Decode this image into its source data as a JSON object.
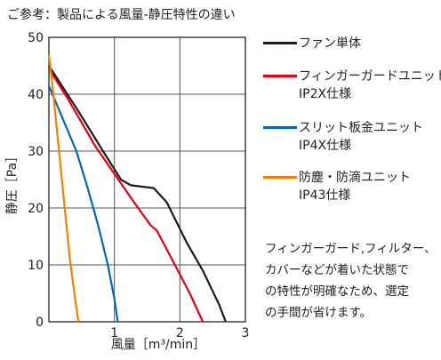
{
  "chart_data": {
    "type": "line",
    "title": "ご参考：製品による風量-静圧特性の違い",
    "xlabel": "風量［m³/min］",
    "ylabel": "静圧［Pa］",
    "xlim": [
      0,
      3
    ],
    "ylim": [
      0,
      50
    ],
    "x_ticks": [
      "1",
      "2",
      "3"
    ],
    "y_ticks": [
      "0",
      "10",
      "20",
      "30",
      "40",
      "50"
    ],
    "grid": true,
    "legend_position": "right",
    "series": [
      {
        "name": "ファン単体",
        "color": "#231815",
        "points": [
          [
            0,
            45
          ],
          [
            0.45,
            37
          ],
          [
            0.8,
            30.5
          ],
          [
            1.1,
            25
          ],
          [
            1.25,
            24
          ],
          [
            1.6,
            23.5
          ],
          [
            1.8,
            21
          ],
          [
            2.1,
            14
          ],
          [
            2.35,
            9
          ],
          [
            2.6,
            3
          ],
          [
            2.7,
            0
          ]
        ]
      },
      {
        "name": "フィンガーガードユニット",
        "sub": "IP2X仕様",
        "color": "#e60012",
        "points": [
          [
            0,
            44.5
          ],
          [
            0.3,
            39
          ],
          [
            0.7,
            31
          ],
          [
            1.0,
            26
          ],
          [
            1.3,
            21
          ],
          [
            1.55,
            17
          ],
          [
            1.65,
            16
          ],
          [
            1.9,
            10.5
          ],
          [
            2.15,
            5
          ],
          [
            2.35,
            0
          ]
        ]
      },
      {
        "name": "スリット板金ユニット",
        "sub": "IP4X仕様",
        "color": "#0068b7",
        "points": [
          [
            0,
            41.5
          ],
          [
            0.2,
            36
          ],
          [
            0.42,
            30
          ],
          [
            0.58,
            24
          ],
          [
            0.75,
            17
          ],
          [
            0.9,
            10
          ],
          [
            1.0,
            4
          ],
          [
            1.05,
            0
          ]
        ]
      },
      {
        "name": "防塵・防滴ユニット",
        "sub": "IP43仕様",
        "color": "#f08300",
        "points": [
          [
            0,
            47
          ],
          [
            0.06,
            41
          ],
          [
            0.12,
            34
          ],
          [
            0.18,
            27
          ],
          [
            0.25,
            19
          ],
          [
            0.32,
            11
          ],
          [
            0.4,
            4
          ],
          [
            0.45,
            0
          ]
        ]
      }
    ]
  },
  "note_lines": [
    "フィンガーガード,フィルター、",
    "カバーなどが着いた状態で",
    "の特性が明確なため、選定",
    "の手間が省けます。"
  ]
}
